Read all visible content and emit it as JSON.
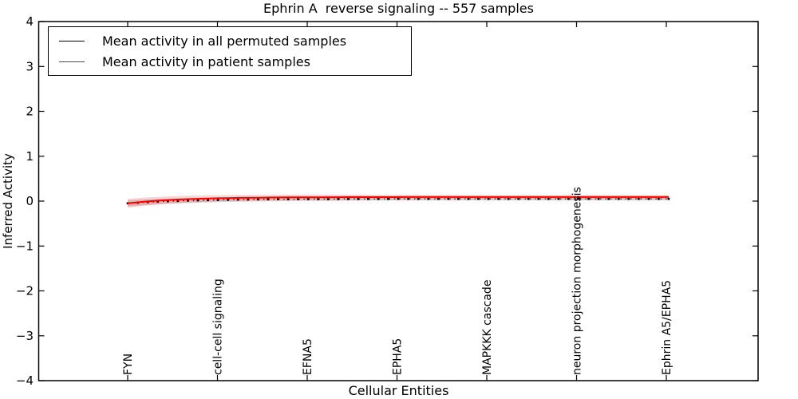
{
  "figure": {
    "title": "Ephrin A  reverse signaling -- 557 samples",
    "xlabel": "Cellular Entities",
    "ylabel": "Inferred Activity",
    "legend": {
      "position": "upper left",
      "entries": [
        {
          "label": "Mean activity in all permuted samples",
          "color": "#000000"
        },
        {
          "label": "Mean activity in patient samples",
          "color": "#ff0000"
        }
      ]
    }
  },
  "chart_data": {
    "type": "line",
    "title": "Ephrin A  reverse signaling -- 557 samples",
    "xlabel": "Cellular Entities",
    "ylabel": "Inferred Activity",
    "ylim": [
      -4,
      4
    ],
    "yticks": [
      -4,
      -3,
      -2,
      -1,
      0,
      1,
      2,
      3,
      4
    ],
    "grid": false,
    "legend_position": "upper left",
    "xtick_labels": [
      "FYN",
      "cell-cell signaling",
      "EFNA5",
      "EPHA5",
      "MAPKKK cascade",
      "neuron projection morphogenesis",
      "Ephrin A5/EPHA5"
    ],
    "xtick_label_rotation_deg": 90,
    "xtick_indices": [
      0,
      9,
      18,
      27,
      36,
      45,
      54
    ],
    "series": [
      {
        "name": "Mean activity in all permuted samples",
        "color": "#000000",
        "line_style": "dotted",
        "marker": "square",
        "band": {
          "halfwidth_start": 0.07,
          "halfwidth_end": 0.035,
          "color": "rgba(130,130,130,0.35)"
        },
        "values": [
          -0.05,
          -0.036,
          -0.023,
          -0.013,
          -0.004,
          0.004,
          0.01,
          0.016,
          0.021,
          0.025,
          0.029,
          0.032,
          0.034,
          0.037,
          0.039,
          0.04,
          0.042,
          0.043,
          0.044,
          0.045,
          0.045,
          0.046,
          0.047,
          0.047,
          0.048,
          0.048,
          0.048,
          0.049,
          0.049,
          0.049,
          0.049,
          0.05,
          0.05,
          0.05,
          0.05,
          0.05,
          0.05,
          0.05,
          0.05,
          0.05,
          0.05,
          0.05,
          0.05,
          0.05,
          0.05,
          0.05,
          0.05,
          0.05,
          0.05,
          0.05,
          0.05,
          0.05,
          0.05,
          0.05,
          0.05
        ]
      },
      {
        "name": "Mean activity in patient samples",
        "color": "#ff0000",
        "line_style": "solid",
        "marker": "none",
        "band": {
          "halfwidth_start": 0.1,
          "halfwidth_end": 0.05,
          "color": "rgba(255,80,80,0.25)"
        },
        "values": [
          -0.05,
          -0.026,
          -0.007,
          0.01,
          0.023,
          0.035,
          0.044,
          0.052,
          0.058,
          0.064,
          0.068,
          0.072,
          0.075,
          0.077,
          0.08,
          0.081,
          0.083,
          0.084,
          0.085,
          0.086,
          0.087,
          0.087,
          0.088,
          0.088,
          0.088,
          0.089,
          0.089,
          0.089,
          0.09,
          0.09,
          0.09,
          0.09,
          0.09,
          0.09,
          0.09,
          0.09,
          0.09,
          0.09,
          0.09,
          0.09,
          0.09,
          0.09,
          0.09,
          0.09,
          0.09,
          0.09,
          0.09,
          0.09,
          0.09,
          0.09,
          0.09,
          0.09,
          0.09,
          0.09,
          0.09
        ]
      }
    ]
  }
}
